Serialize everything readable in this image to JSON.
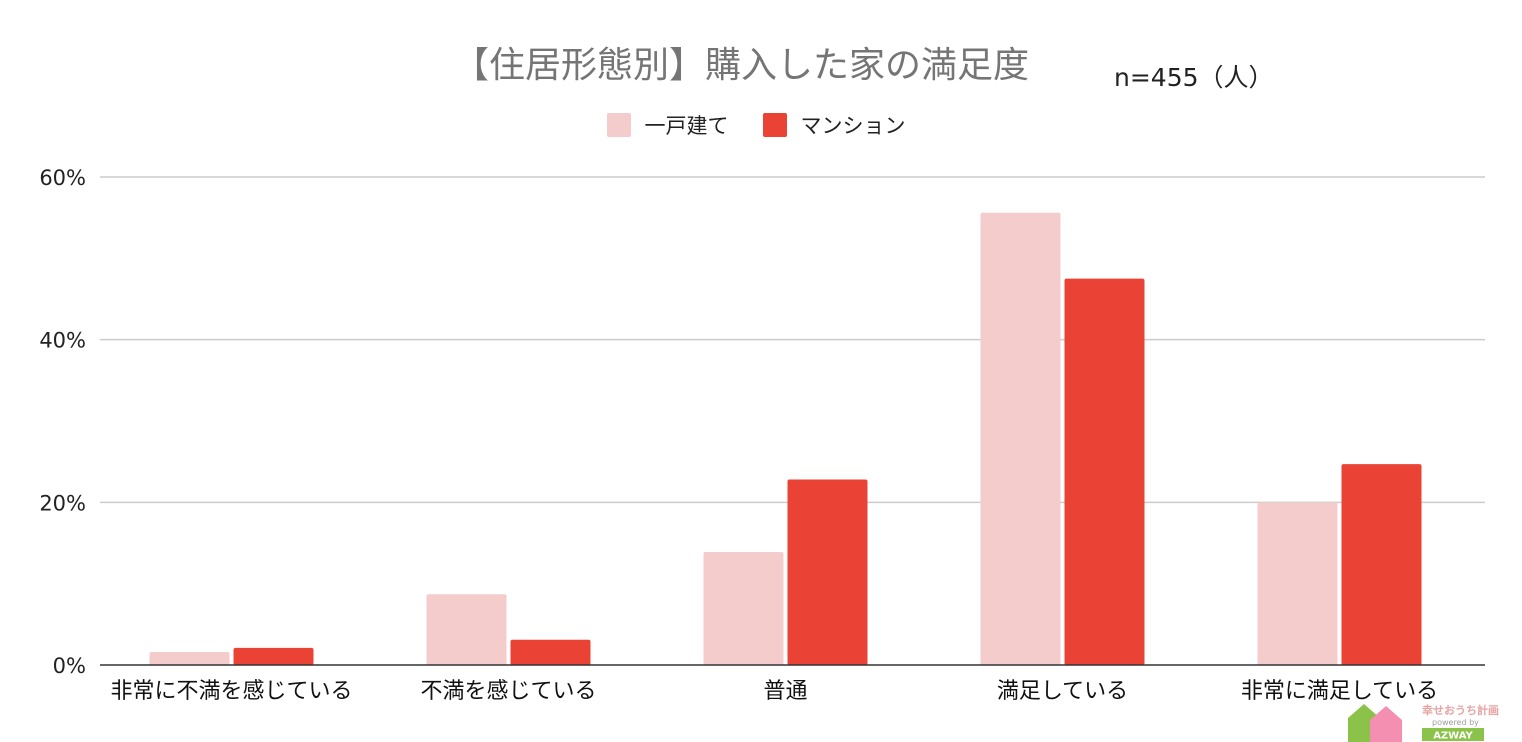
{
  "chart_data": {
    "type": "bar",
    "title": "【住居形態別】購入した家の満足度",
    "note": "n=455（人）",
    "categories": [
      "非常に不満を感じている",
      "不満を感じている",
      "普通",
      "満足している",
      "非常に満足している"
    ],
    "series": [
      {
        "name": "一戸建て",
        "color": "#f4cccc",
        "values": [
          1.6,
          8.7,
          13.9,
          55.6,
          20.0
        ]
      },
      {
        "name": "マンション",
        "color": "#ea4335",
        "values": [
          2.1,
          3.1,
          22.8,
          47.5,
          24.7
        ]
      }
    ],
    "ylim": [
      0,
      60
    ],
    "yticks": [
      0,
      20,
      40,
      60
    ],
    "ytick_labels": [
      "0%",
      "20%",
      "40%",
      "60%"
    ],
    "grid": true,
    "legend_position": "top-center"
  },
  "logo": {
    "text": "幸せおうち計画",
    "sub": "powered by",
    "brand": "AZWAY"
  }
}
